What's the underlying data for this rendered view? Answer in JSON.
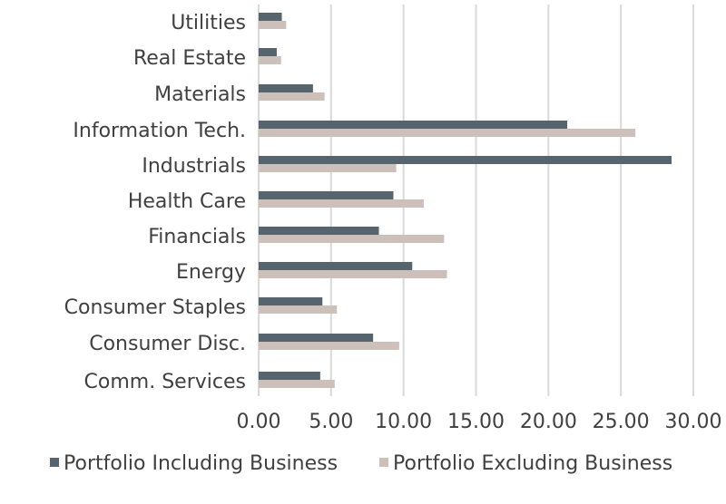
{
  "chart_data": {
    "type": "bar",
    "orientation": "horizontal",
    "title": "",
    "xlabel": "",
    "ylabel": "",
    "categories": [
      "Utilities",
      "Real Estate",
      "Materials",
      "Information Tech.",
      "Industrials",
      "Health Care",
      "Financials",
      "Energy",
      "Consumer Staples",
      "Consumer Disc.",
      "Comm. Services"
    ],
    "series": [
      {
        "name": "Portfolio Including Business",
        "color": "#56646d",
        "values": [
          1.6,
          1.25,
          3.75,
          21.3,
          28.5,
          9.3,
          8.3,
          10.6,
          4.4,
          7.9,
          4.25
        ]
      },
      {
        "name": "Portfolio Excluding Business",
        "color": "#cdc0bb",
        "values": [
          1.9,
          1.55,
          4.55,
          26.0,
          9.5,
          11.4,
          12.8,
          13.0,
          5.4,
          9.7,
          5.25
        ]
      }
    ],
    "xlim": [
      0,
      30
    ],
    "xticks": [
      "0.00",
      "5.00",
      "10.00",
      "15.00",
      "20.00",
      "25.00",
      "30.00"
    ],
    "grid": true,
    "legend_position": "bottom"
  }
}
